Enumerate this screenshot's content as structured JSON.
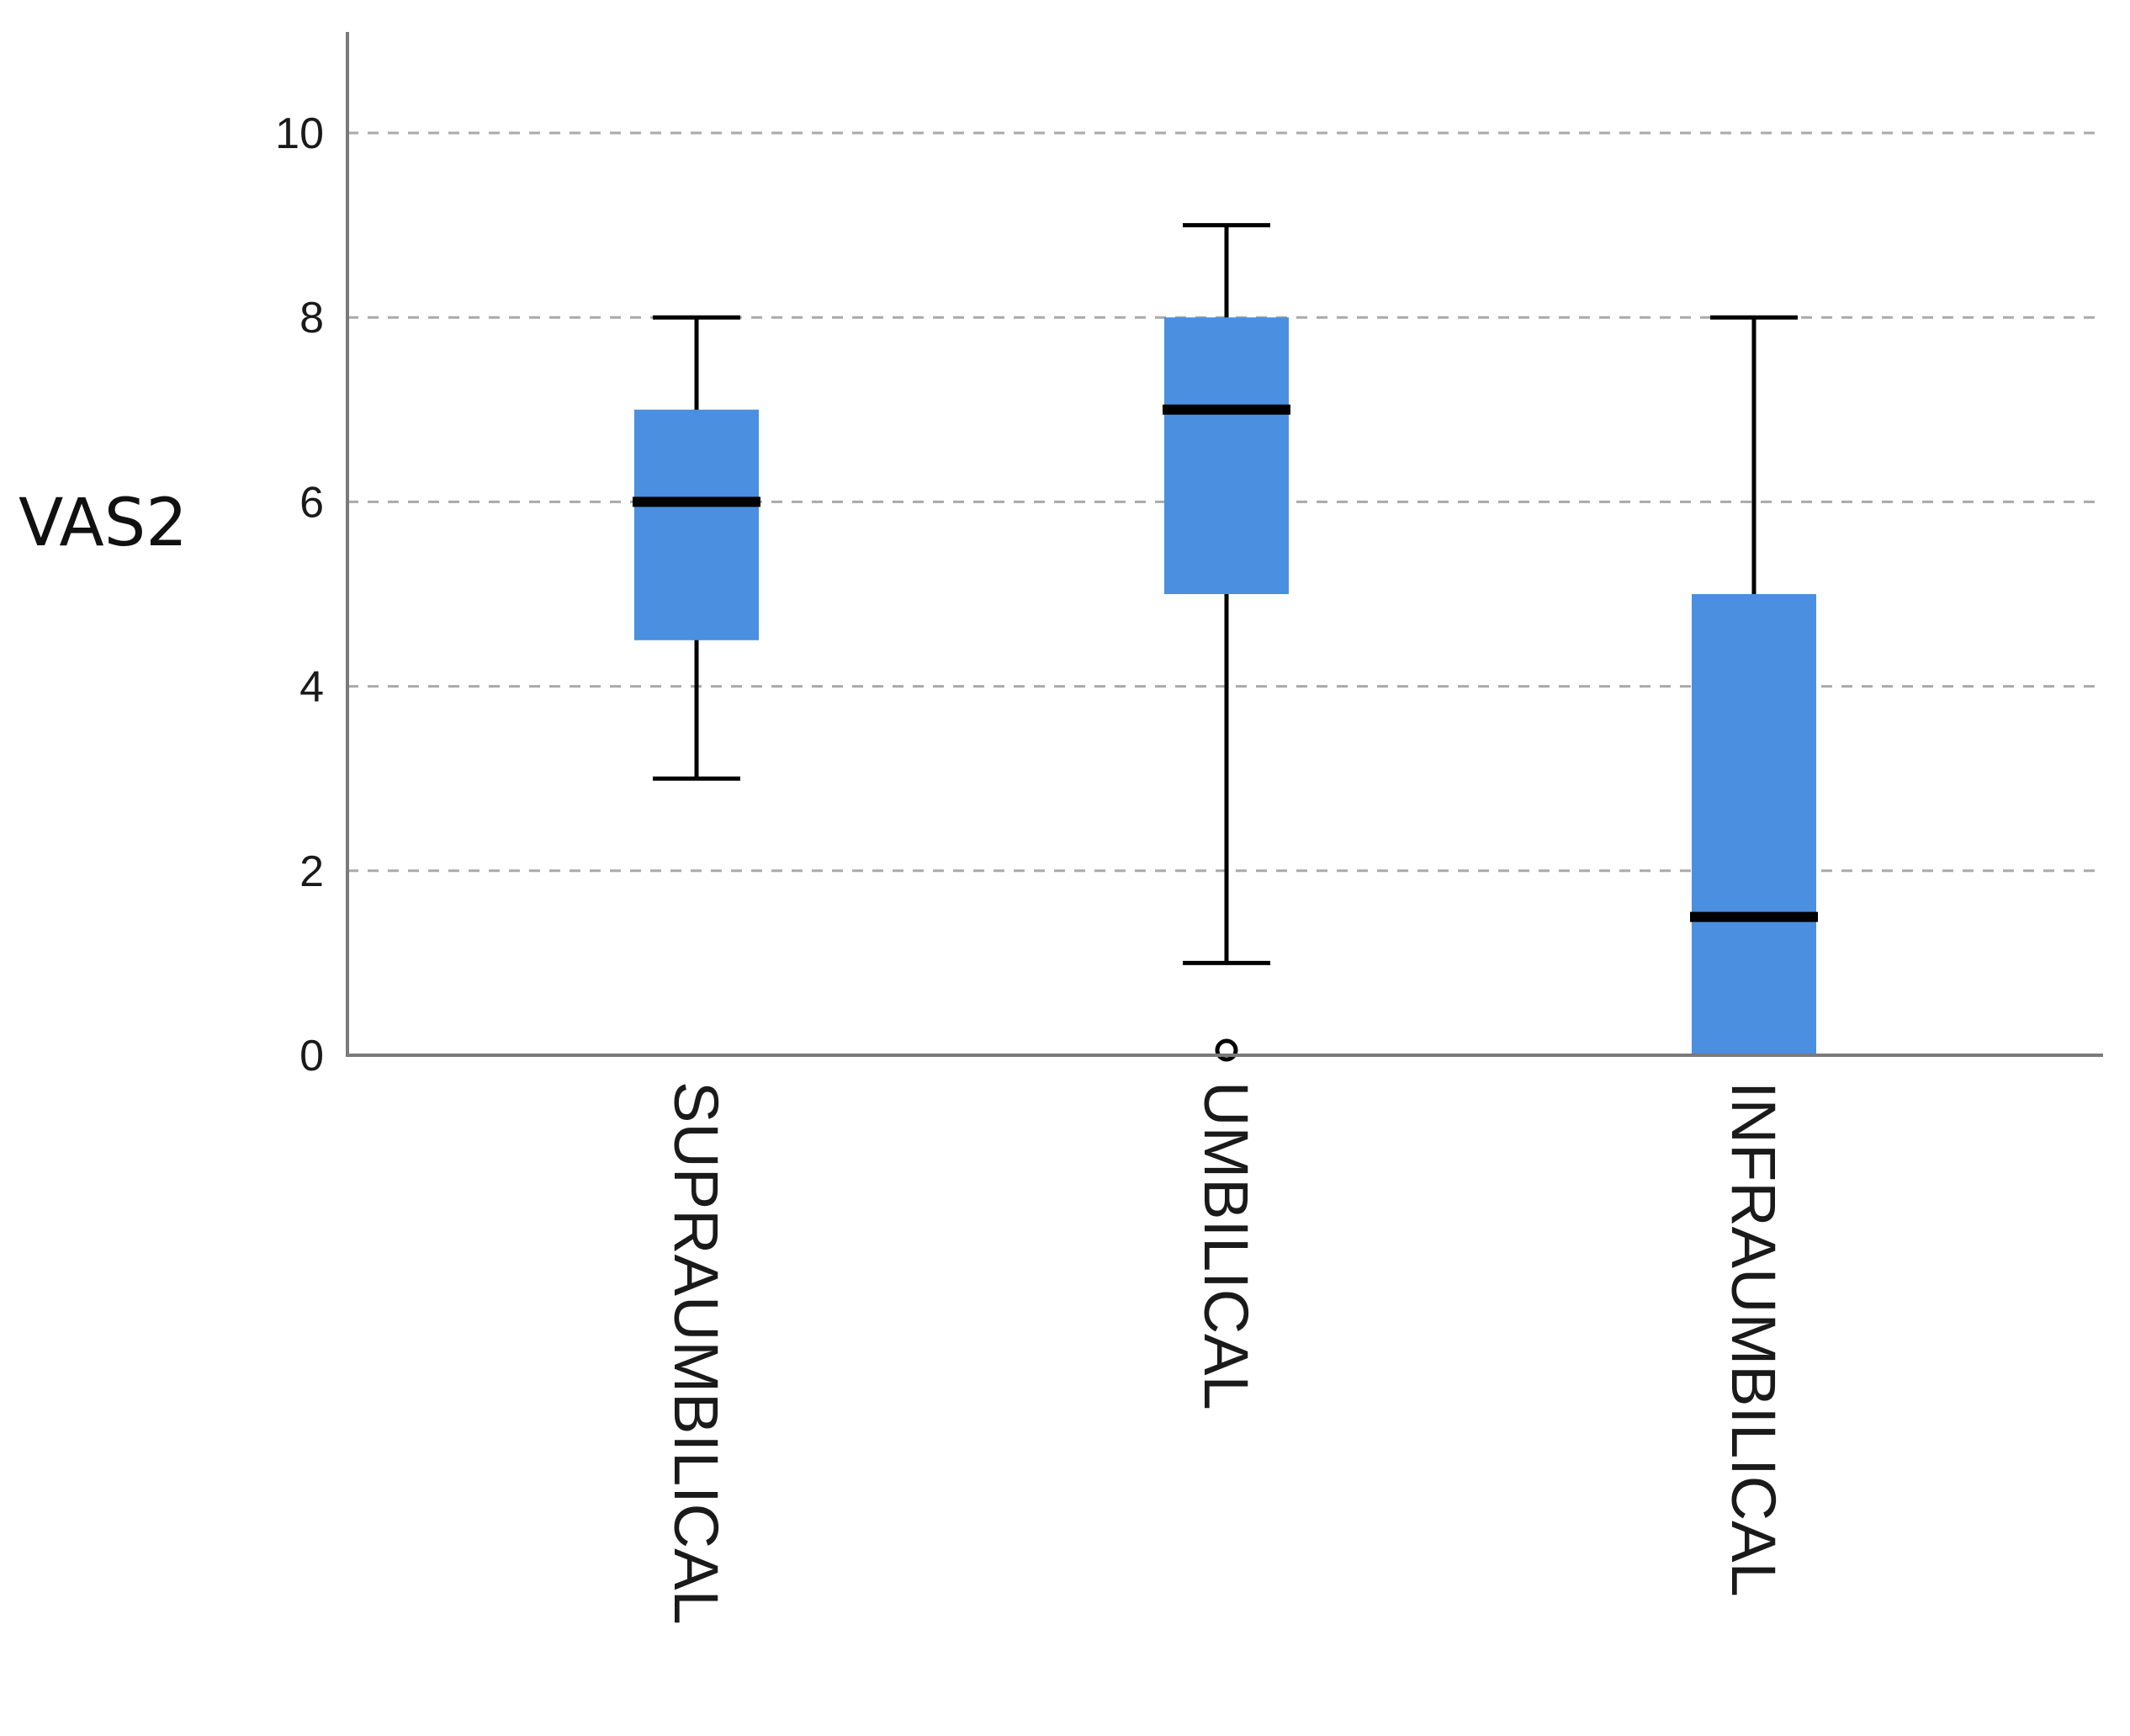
{
  "chart_data": {
    "type": "boxplot",
    "title": "",
    "xlabel": "",
    "ylabel": "VAS2",
    "ylim": [
      0,
      11
    ],
    "yticks": [
      0,
      2,
      4,
      6,
      8,
      10
    ],
    "grid": "horizontal dashed",
    "categories": [
      "SUPRAUMBILICAL",
      "UMBILICAL",
      "INFRAUMBILICAL"
    ],
    "boxes": [
      {
        "category": "SUPRAUMBILICAL",
        "whisker_low": 3,
        "q1": 4.5,
        "median": 6,
        "q3": 7,
        "whisker_high": 8,
        "outliers": []
      },
      {
        "category": "UMBILICAL",
        "whisker_low": 1,
        "q1": 5,
        "median": 7,
        "q3": 8,
        "whisker_high": 9,
        "outliers": [
          0
        ]
      },
      {
        "category": "INFRAUMBILICAL",
        "whisker_low": 0,
        "q1": 0,
        "median": 1.5,
        "q3": 5,
        "whisker_high": 8,
        "outliers": []
      }
    ],
    "colors": {
      "box_fill": "#4a8fe0",
      "median": "#000000",
      "whisker": "#000000",
      "grid": "#aaaaaa",
      "axis": "#7a7a7a"
    }
  }
}
